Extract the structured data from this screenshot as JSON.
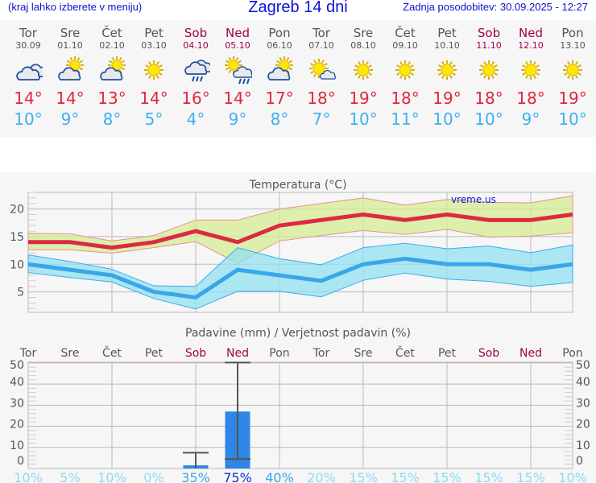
{
  "header": {
    "hint": "(kraj lahko izberete v meniju)",
    "title": "Zagreb 14 dni",
    "updated": "Zadnja posodobitev: 30.09.2025 - 12:27"
  },
  "days": [
    {
      "name": "Tor",
      "date": "30.09",
      "weekend": false,
      "icon": "cloudy-icon",
      "max": "14°",
      "min": "10°"
    },
    {
      "name": "Sre",
      "date": "01.10",
      "weekend": false,
      "icon": "partly-cloudy-icon",
      "max": "14°",
      "min": "9°"
    },
    {
      "name": "Čet",
      "date": "02.10",
      "weekend": false,
      "icon": "partly-cloudy-icon",
      "max": "13°",
      "min": "8°"
    },
    {
      "name": "Pet",
      "date": "03.10",
      "weekend": false,
      "icon": "sun-icon",
      "max": "14°",
      "min": "5°"
    },
    {
      "name": "Sob",
      "date": "04.10",
      "weekend": true,
      "icon": "cloud-rain-icon",
      "max": "16°",
      "min": "4°"
    },
    {
      "name": "Ned",
      "date": "05.10",
      "weekend": true,
      "icon": "sun-cloud-rain-icon",
      "max": "14°",
      "min": "9°"
    },
    {
      "name": "Pon",
      "date": "06.10",
      "weekend": false,
      "icon": "partly-cloudy-icon",
      "max": "17°",
      "min": "8°"
    },
    {
      "name": "Tor",
      "date": "07.10",
      "weekend": false,
      "icon": "mostly-sunny-icon",
      "max": "18°",
      "min": "7°"
    },
    {
      "name": "Sre",
      "date": "08.10",
      "weekend": false,
      "icon": "sun-icon",
      "max": "19°",
      "min": "10°"
    },
    {
      "name": "Čet",
      "date": "09.10",
      "weekend": false,
      "icon": "sun-icon",
      "max": "18°",
      "min": "11°"
    },
    {
      "name": "Pet",
      "date": "10.10",
      "weekend": false,
      "icon": "sun-icon",
      "max": "19°",
      "min": "10°"
    },
    {
      "name": "Sob",
      "date": "11.10",
      "weekend": true,
      "icon": "sun-icon",
      "max": "18°",
      "min": "10°"
    },
    {
      "name": "Ned",
      "date": "12.10",
      "weekend": true,
      "icon": "sun-icon",
      "max": "18°",
      "min": "9°"
    },
    {
      "name": "Pon",
      "date": "13.10",
      "weekend": false,
      "icon": "sun-icon",
      "max": "19°",
      "min": "10°"
    }
  ],
  "colors": {
    "max": "#e0283c",
    "min": "#40b0f0",
    "weekend": "#a0004a",
    "bar": "#2e86e6"
  },
  "chart_data": [
    {
      "type": "line",
      "title": "Temperatura (°C)",
      "watermark": "vreme.us",
      "categories": [
        "Tor",
        "Sre",
        "Čet",
        "Pet",
        "Sob",
        "Ned",
        "Pon",
        "Tor",
        "Sre",
        "Čet",
        "Pet",
        "Sob",
        "Ned",
        "Pon"
      ],
      "ylim": [
        1.3,
        23
      ],
      "yticks": [
        5,
        10,
        15,
        20
      ],
      "grid": true,
      "series": [
        {
          "role": "max",
          "values": [
            14,
            14,
            13,
            14,
            16,
            14,
            17,
            18,
            19,
            18,
            19,
            18,
            18,
            19
          ],
          "band_upper": [
            15.6,
            15.5,
            14.2,
            15.2,
            18,
            18,
            20,
            21,
            22,
            20.7,
            21.7,
            21.2,
            21.1,
            22.4
          ],
          "band_lower": [
            12.6,
            12.6,
            12,
            13,
            14.1,
            10.2,
            14.2,
            15.2,
            16.1,
            15.4,
            16.3,
            14.9,
            15.1,
            15.7
          ]
        },
        {
          "role": "min",
          "values": [
            10,
            9,
            8,
            5,
            4,
            9,
            8,
            7,
            10,
            11,
            10,
            10,
            9,
            10
          ],
          "band_upper": [
            11.7,
            10.5,
            9.1,
            6.1,
            6,
            13,
            11,
            9.9,
            13,
            13.8,
            12.8,
            13.3,
            12.1,
            13.5
          ],
          "band_lower": [
            8.5,
            7.6,
            6.8,
            3.8,
            1.9,
            5.1,
            5.1,
            4.1,
            7.1,
            8.4,
            7.3,
            6.9,
            6,
            6.7
          ]
        }
      ]
    },
    {
      "type": "bar",
      "title": "Padavine (mm) / Verjetnost padavin (%)",
      "categories": [
        "Tor",
        "Sre",
        "Čet",
        "Pet",
        "Sob",
        "Ned",
        "Pon",
        "Tor",
        "Sre",
        "Čet",
        "Pet",
        "Sob",
        "Ned",
        "Pon"
      ],
      "weekend": [
        false,
        false,
        false,
        false,
        true,
        true,
        false,
        false,
        false,
        false,
        false,
        true,
        true,
        false
      ],
      "ylim": [
        0,
        50
      ],
      "yticks": [
        0,
        10,
        20,
        30,
        40,
        50
      ],
      "values": [
        0,
        0,
        0,
        0,
        1.5,
        27,
        0,
        0,
        0,
        0,
        0,
        0,
        0,
        0
      ],
      "error_low": [
        null,
        null,
        null,
        null,
        0,
        4.5,
        null,
        null,
        null,
        null,
        null,
        null,
        null,
        null
      ],
      "error_high": [
        null,
        null,
        null,
        null,
        7.5,
        51,
        null,
        null,
        null,
        null,
        null,
        null,
        null,
        null
      ],
      "probability": [
        "10%",
        "5%",
        "10%",
        "0%",
        "35%",
        "75%",
        "40%",
        "20%",
        "15%",
        "15%",
        "15%",
        "15%",
        "15%",
        "10%"
      ]
    }
  ]
}
